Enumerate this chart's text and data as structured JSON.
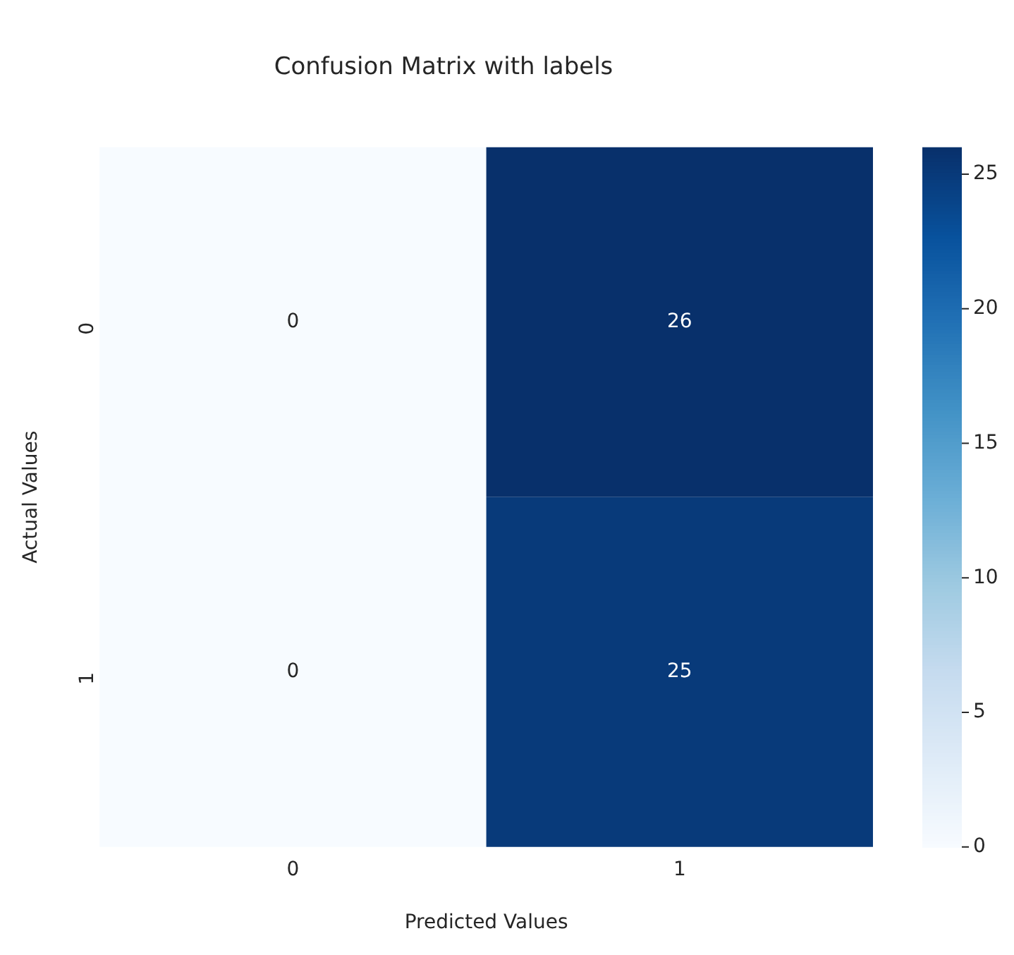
{
  "chart_data": {
    "type": "heatmap",
    "title": "Confusion Matrix with labels",
    "xlabel": "Predicted Values",
    "ylabel": "Actual Values",
    "categories": [
      "0",
      "1"
    ],
    "y_categories": [
      "0",
      "1"
    ],
    "cells": [
      [
        0,
        26
      ],
      [
        0,
        25
      ]
    ],
    "clim": [
      0,
      26
    ],
    "cticks": [
      0,
      5,
      10,
      15,
      20,
      25
    ],
    "data_labels": true
  }
}
